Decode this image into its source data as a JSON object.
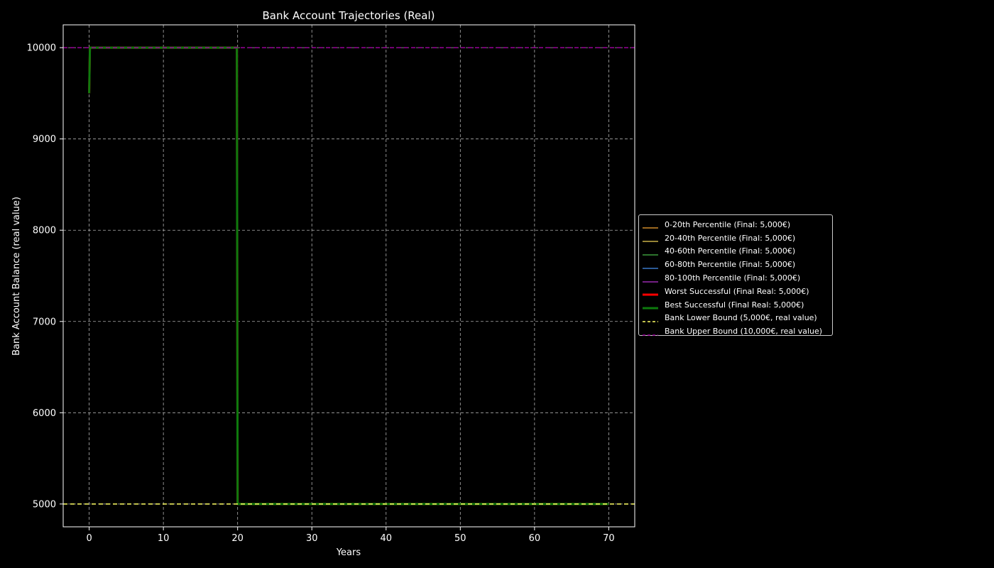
{
  "chart_data": {
    "type": "line",
    "title": "Bank Account Trajectories (Real)",
    "xlabel": "Years",
    "ylabel": "Bank Account Balance (real value)",
    "xlim": [
      -3.5,
      73.5
    ],
    "ylim": [
      4750,
      10250
    ],
    "xticks": [
      0,
      10,
      20,
      30,
      40,
      50,
      60,
      70
    ],
    "yticks": [
      5000,
      6000,
      7000,
      8000,
      9000,
      10000
    ],
    "grid": true,
    "legend_position": "center-right outside",
    "background": "#000000",
    "series": [
      {
        "name": "0-20th Percentile (Final: 5,000€)",
        "color": "#d08a2a",
        "style": "solid",
        "width": 1.5,
        "x": [
          0,
          0.1,
          19.9,
          20,
          20.1,
          70
        ],
        "y": [
          9500,
          10000,
          10000,
          5000,
          5000,
          5000
        ]
      },
      {
        "name": "20-40th Percentile (Final: 5,000€)",
        "color": "#c8b048",
        "style": "solid",
        "width": 1.5,
        "x": [
          0,
          0.1,
          19.9,
          20,
          20.1,
          70
        ],
        "y": [
          9500,
          10000,
          10000,
          5000,
          5000,
          5000
        ]
      },
      {
        "name": "40-60th Percentile (Final: 5,000€)",
        "color": "#3c9a3c",
        "style": "solid",
        "width": 1.5,
        "x": [
          0,
          0.1,
          19.9,
          20,
          20.1,
          70
        ],
        "y": [
          9500,
          10000,
          10000,
          5000,
          5000,
          5000
        ]
      },
      {
        "name": "60-80th Percentile (Final: 5,000€)",
        "color": "#3a78c8",
        "style": "solid",
        "width": 1.5,
        "x": [
          0,
          0.1,
          19.9,
          20,
          20.1,
          70
        ],
        "y": [
          9500,
          10000,
          10000,
          5000,
          5000,
          5000
        ]
      },
      {
        "name": "80-100th Percentile (Final: 5,000€)",
        "color": "#9a2ab0",
        "style": "solid",
        "width": 1.5,
        "x": [
          0,
          0.1,
          19.9,
          20,
          20.1,
          70
        ],
        "y": [
          9500,
          10000,
          10000,
          5000,
          5000,
          5000
        ]
      },
      {
        "name": "Worst Successful (Final Real: 5,000€)",
        "color": "#ff0000",
        "style": "solid",
        "width": 3,
        "x": [
          0,
          0.1,
          19.9,
          20,
          20.1,
          70
        ],
        "y": [
          9500,
          10000,
          10000,
          5000,
          5000,
          5000
        ]
      },
      {
        "name": "Best Successful (Final Real: 5,000€)",
        "color": "#0d7a0d",
        "style": "solid",
        "width": 3,
        "x": [
          0,
          0.1,
          19.9,
          20,
          20.1,
          70
        ],
        "y": [
          9500,
          10000,
          10000,
          5000,
          5000,
          5000
        ]
      },
      {
        "name": "Bank Lower Bound (5,000€, real value)",
        "color": "#ffff66",
        "style": "dashed",
        "width": 1.5,
        "x": [
          -3.5,
          73.5
        ],
        "y": [
          5000,
          5000
        ]
      },
      {
        "name": "Bank Upper Bound (10,000€, real value)",
        "color": "#9a009a",
        "style": "dashed",
        "width": 1.5,
        "x": [
          -3.5,
          73.5
        ],
        "y": [
          10000,
          10000
        ]
      }
    ]
  }
}
